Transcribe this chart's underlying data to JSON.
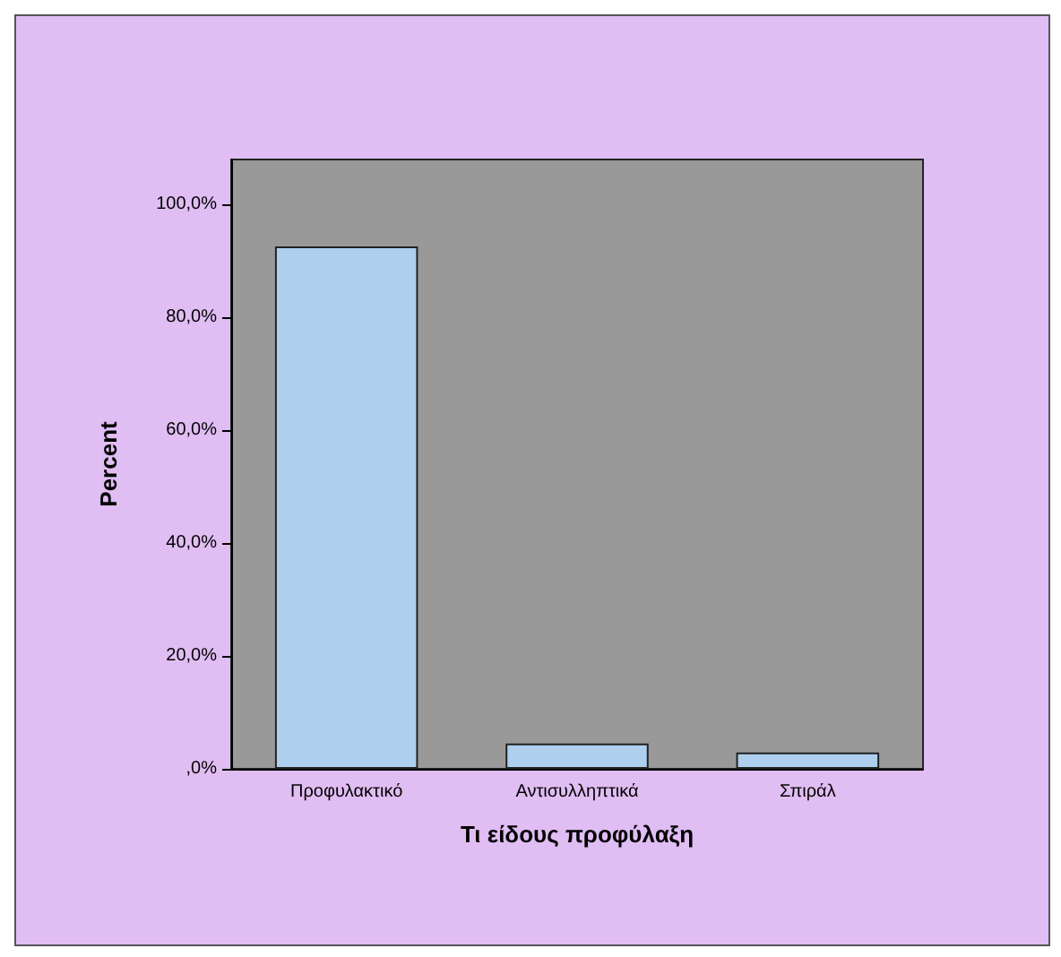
{
  "chart_data": {
    "type": "bar",
    "xlabel": "Τι είδους προφύλαξη",
    "ylabel": "Percent",
    "categories": [
      "Προφυλακτικό",
      "Αντισυλληπτικά",
      "Σπιράλ"
    ],
    "values": [
      92.6,
      4.5,
      2.9
    ],
    "color": "#aed0ee",
    "ylim": [
      0,
      108
    ],
    "yticks": [
      {
        "value": 0,
        "label": ",0%"
      },
      {
        "value": 20,
        "label": "20,0%"
      },
      {
        "value": 40,
        "label": "40,0%"
      },
      {
        "value": 60,
        "label": "60,0%"
      },
      {
        "value": 80,
        "label": "80,0%"
      },
      {
        "value": 100,
        "label": "100,0%"
      }
    ],
    "grid": false
  }
}
